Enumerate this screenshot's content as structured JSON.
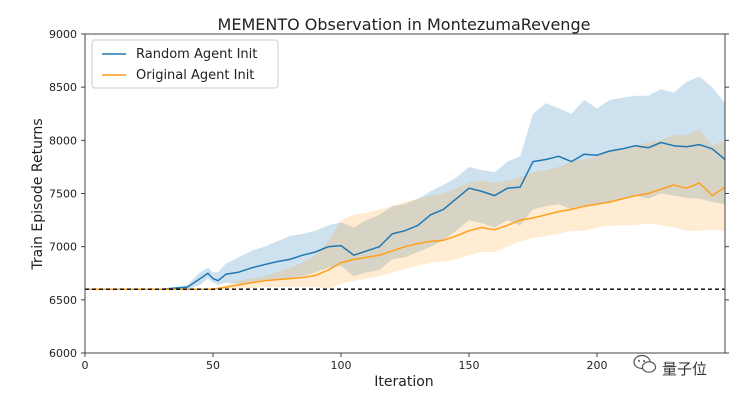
{
  "chart_data": {
    "type": "line",
    "title": "MEMENTO Observation in MontezumaRevenge",
    "xlabel": "Iteration",
    "ylabel": "Train Episode Returns",
    "xlim": [
      0,
      250
    ],
    "ylim": [
      6000,
      9000
    ],
    "xticks": [
      0,
      50,
      100,
      150,
      200
    ],
    "yticks": [
      6000,
      6500,
      7000,
      7500,
      8000,
      8500,
      9000
    ],
    "legend_position": "top-left",
    "reference_line": {
      "y": 6600,
      "style": "dashed",
      "color": "#000000"
    },
    "series": [
      {
        "name": "Random Agent Init",
        "color": "#1f77b4",
        "x": [
          0,
          30,
          35,
          40,
          45,
          48,
          50,
          52,
          55,
          60,
          65,
          70,
          75,
          80,
          85,
          90,
          95,
          100,
          105,
          110,
          115,
          120,
          125,
          130,
          135,
          140,
          145,
          150,
          155,
          160,
          165,
          170,
          175,
          180,
          185,
          190,
          195,
          200,
          205,
          210,
          215,
          220,
          225,
          230,
          235,
          240,
          245,
          250
        ],
        "values": [
          6600,
          6600,
          6610,
          6620,
          6700,
          6750,
          6700,
          6680,
          6740,
          6760,
          6800,
          6830,
          6860,
          6880,
          6920,
          6950,
          7000,
          7010,
          6920,
          6960,
          7000,
          7120,
          7150,
          7200,
          7300,
          7350,
          7450,
          7550,
          7520,
          7480,
          7550,
          7560,
          7800,
          7820,
          7850,
          7800,
          7870,
          7860,
          7900,
          7920,
          7950,
          7930,
          7980,
          7950,
          7940,
          7960,
          7920,
          7820
        ],
        "upper": [
          6600,
          6600,
          6620,
          6640,
          6760,
          6800,
          6760,
          6760,
          6840,
          6900,
          6960,
          7000,
          7050,
          7100,
          7120,
          7150,
          7200,
          7230,
          7180,
          7250,
          7300,
          7380,
          7400,
          7450,
          7520,
          7580,
          7650,
          7750,
          7720,
          7700,
          7800,
          7850,
          8250,
          8350,
          8300,
          8250,
          8380,
          8300,
          8380,
          8400,
          8420,
          8420,
          8480,
          8450,
          8550,
          8600,
          8500,
          8350
        ],
        "lower": [
          6600,
          6600,
          6600,
          6600,
          6640,
          6700,
          6660,
          6640,
          6660,
          6650,
          6660,
          6680,
          6700,
          6700,
          6720,
          6760,
          6800,
          6820,
          6720,
          6760,
          6780,
          6880,
          6900,
          6950,
          7000,
          7060,
          7150,
          7250,
          7220,
          7180,
          7250,
          7200,
          7350,
          7380,
          7400,
          7350,
          7380,
          7400,
          7420,
          7440,
          7480,
          7450,
          7500,
          7480,
          7460,
          7450,
          7420,
          7400
        ]
      },
      {
        "name": "Original Agent Init",
        "color": "#ff9f1c",
        "x": [
          0,
          30,
          40,
          50,
          55,
          60,
          65,
          70,
          75,
          80,
          85,
          90,
          95,
          100,
          105,
          110,
          115,
          120,
          125,
          130,
          135,
          140,
          145,
          150,
          155,
          160,
          165,
          170,
          175,
          180,
          185,
          190,
          195,
          200,
          205,
          210,
          215,
          220,
          225,
          230,
          235,
          240,
          245,
          250
        ],
        "values": [
          6600,
          6600,
          6600,
          6600,
          6620,
          6640,
          6660,
          6680,
          6690,
          6700,
          6710,
          6730,
          6780,
          6850,
          6880,
          6900,
          6920,
          6960,
          7000,
          7030,
          7050,
          7060,
          7100,
          7150,
          7180,
          7160,
          7200,
          7250,
          7270,
          7300,
          7330,
          7350,
          7380,
          7400,
          7420,
          7450,
          7480,
          7500,
          7540,
          7580,
          7550,
          7600,
          7480,
          7560
        ],
        "upper": [
          6600,
          6600,
          6600,
          6600,
          6640,
          6680,
          6700,
          6720,
          6760,
          6800,
          6850,
          6920,
          7050,
          7250,
          7300,
          7320,
          7350,
          7380,
          7420,
          7450,
          7480,
          7500,
          7550,
          7600,
          7620,
          7600,
          7620,
          7650,
          7700,
          7720,
          7750,
          7800,
          7820,
          7850,
          7900,
          7920,
          7950,
          7980,
          8000,
          8050,
          8050,
          8100,
          7950,
          8000
        ],
        "lower": [
          6600,
          6600,
          6600,
          6600,
          6600,
          6600,
          6610,
          6620,
          6620,
          6620,
          6620,
          6620,
          6600,
          6650,
          6680,
          6700,
          6720,
          6760,
          6790,
          6820,
          6850,
          6860,
          6880,
          6920,
          6950,
          6950,
          7000,
          7050,
          7080,
          7100,
          7120,
          7150,
          7150,
          7180,
          7200,
          7200,
          7200,
          7220,
          7200,
          7180,
          7150,
          7150,
          7160,
          7150
        ]
      }
    ]
  },
  "watermark": {
    "icon": "wechat-icon",
    "text": "量子位"
  }
}
